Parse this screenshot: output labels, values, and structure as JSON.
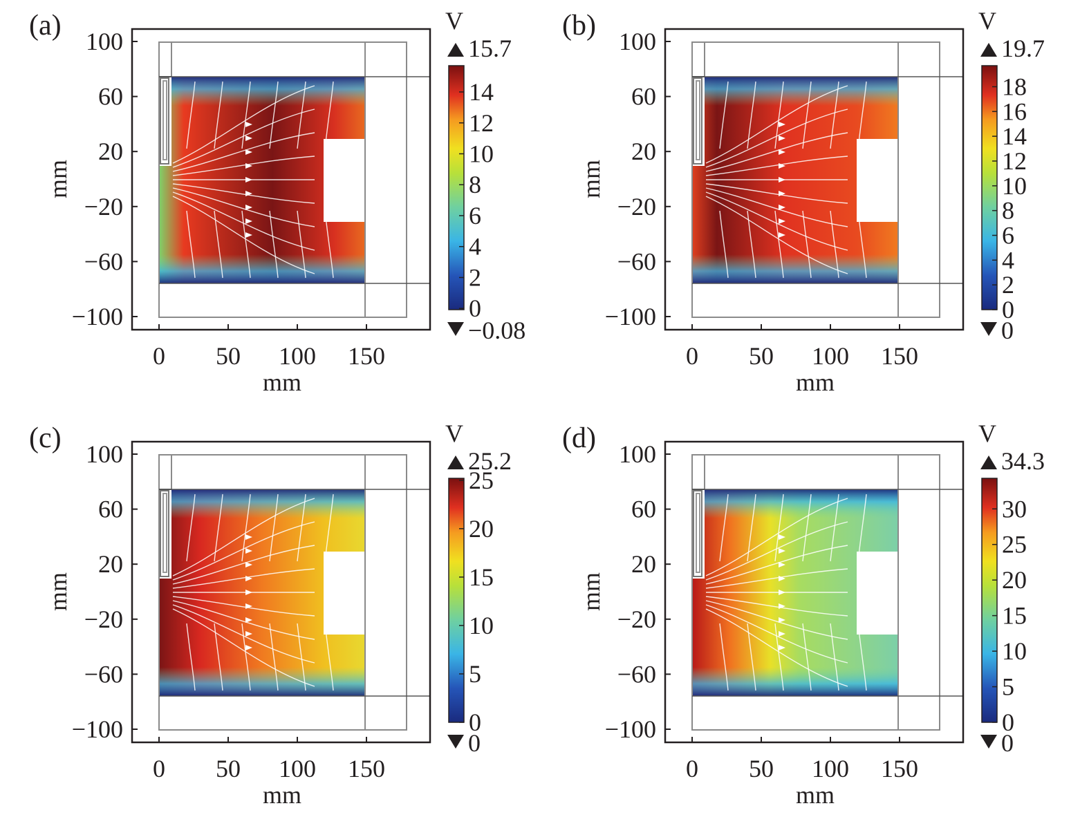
{
  "chart_data": [
    {
      "type": "heatmap",
      "panel_label": "(a)",
      "xlabel": "mm",
      "ylabel": "mm",
      "xlim": [
        -20,
        195
      ],
      "ylim": [
        -110,
        110
      ],
      "xticks": [
        0,
        50,
        100,
        150
      ],
      "yticks": [
        100,
        60,
        20,
        -20,
        -60,
        -100
      ],
      "x_tick_labels": [
        "0",
        "50",
        "100",
        "150"
      ],
      "y_tick_labels": [
        "100",
        "60",
        "20",
        "−20",
        "−60",
        "−100"
      ],
      "colorbar": {
        "unit": "V",
        "max_label": "15.7",
        "min_label": "−0.08",
        "max": 15.7,
        "min": -0.08,
        "ticks": [
          0,
          2,
          4,
          6,
          8,
          10,
          12,
          14
        ],
        "tick_labels": [
          "0",
          "2",
          "4",
          "6",
          "8",
          "10",
          "12",
          "14"
        ]
      },
      "field_pattern": "symmetric",
      "streamlines": "white"
    },
    {
      "type": "heatmap",
      "panel_label": "(b)",
      "xlabel": "mm",
      "ylabel": "mm",
      "xlim": [
        -20,
        195
      ],
      "ylim": [
        -110,
        110
      ],
      "xticks": [
        0,
        50,
        100,
        150
      ],
      "yticks": [
        100,
        60,
        20,
        -20,
        -60,
        -100
      ],
      "x_tick_labels": [
        "0",
        "50",
        "100",
        "150"
      ],
      "y_tick_labels": [
        "100",
        "60",
        "20",
        "−20",
        "−60",
        "−100"
      ],
      "colorbar": {
        "unit": "V",
        "max_label": "19.7",
        "min_label": "0",
        "max": 19.7,
        "min": 0,
        "ticks": [
          0,
          2,
          4,
          6,
          8,
          10,
          12,
          14,
          16,
          18
        ],
        "tick_labels": [
          "0",
          "2",
          "4",
          "6",
          "8",
          "10",
          "12",
          "14",
          "16",
          "18"
        ]
      },
      "field_pattern": "left-peak",
      "streamlines": "white"
    },
    {
      "type": "heatmap",
      "panel_label": "(c)",
      "xlabel": "mm",
      "ylabel": "mm",
      "xlim": [
        -20,
        195
      ],
      "ylim": [
        -110,
        110
      ],
      "xticks": [
        0,
        50,
        100,
        150
      ],
      "yticks": [
        100,
        60,
        20,
        -20,
        -60,
        -100
      ],
      "x_tick_labels": [
        "0",
        "50",
        "100",
        "150"
      ],
      "y_tick_labels": [
        "100",
        "60",
        "20",
        "−20",
        "−60",
        "−100"
      ],
      "colorbar": {
        "unit": "V",
        "max_label": "25.2",
        "min_label": "0",
        "max": 25.2,
        "min": 0,
        "ticks": [
          0,
          5,
          10,
          15,
          20,
          25
        ],
        "tick_labels": [
          "0",
          "5",
          "10",
          "15",
          "20",
          "25"
        ]
      },
      "field_pattern": "gradient",
      "streamlines": "white"
    },
    {
      "type": "heatmap",
      "panel_label": "(d)",
      "xlabel": "mm",
      "ylabel": "mm",
      "xlim": [
        -20,
        195
      ],
      "ylim": [
        -110,
        110
      ],
      "xticks": [
        0,
        50,
        100,
        150
      ],
      "yticks": [
        100,
        60,
        20,
        -20,
        -60,
        -100
      ],
      "x_tick_labels": [
        "0",
        "50",
        "100",
        "150"
      ],
      "y_tick_labels": [
        "100",
        "60",
        "20",
        "−20",
        "−60",
        "−100"
      ],
      "colorbar": {
        "unit": "V",
        "max_label": "34.3",
        "min_label": "0",
        "max": 34.3,
        "min": 0,
        "ticks": [
          0,
          5,
          10,
          15,
          20,
          25,
          30
        ],
        "tick_labels": [
          "0",
          "5",
          "10",
          "15",
          "20",
          "25",
          "30"
        ]
      },
      "field_pattern": "steep-gradient",
      "streamlines": "white"
    }
  ]
}
